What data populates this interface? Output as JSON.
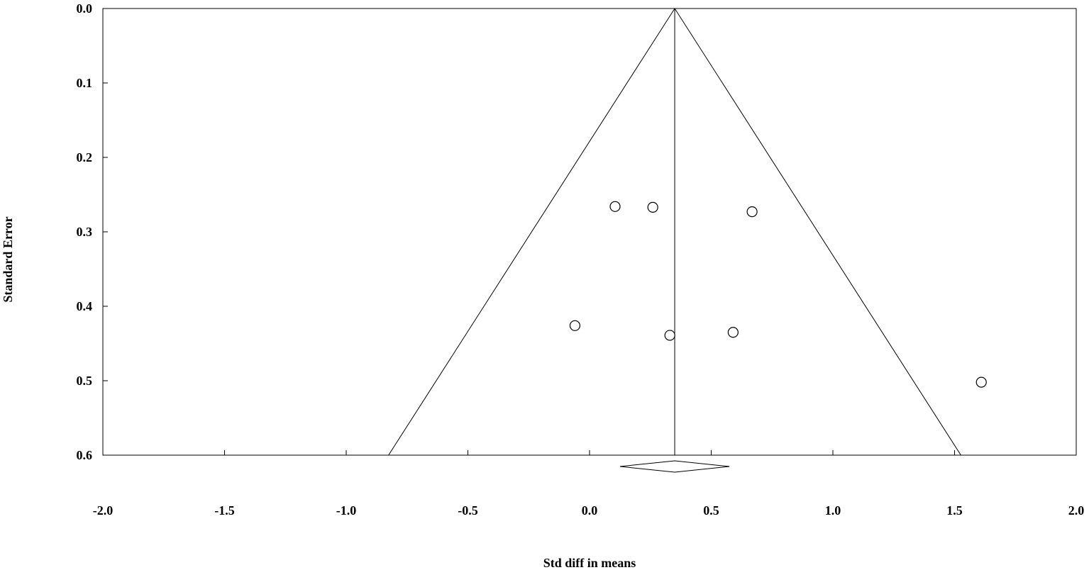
{
  "chart_data": {
    "type": "scatter",
    "title": "",
    "xlabel": "Std diff in means",
    "ylabel": "Standard Error",
    "xlim": [
      -2.0,
      2.0
    ],
    "ylim": [
      0.0,
      0.6
    ],
    "y_inverted": true,
    "grid": false,
    "x_ticks": [
      "-2.0",
      "-1.5",
      "-1.0",
      "-0.5",
      "0.0",
      "0.5",
      "1.0",
      "1.5",
      "2.0"
    ],
    "x_tick_values": [
      -2.0,
      -1.5,
      -1.0,
      -0.5,
      0.0,
      0.5,
      1.0,
      1.5,
      2.0
    ],
    "y_ticks": [
      "0.0",
      "0.1",
      "0.2",
      "0.3",
      "0.4",
      "0.5",
      "0.6"
    ],
    "y_tick_values": [
      0.0,
      0.1,
      0.2,
      0.3,
      0.4,
      0.5,
      0.6
    ],
    "pooled_estimate": 0.35,
    "pooled_ci": [
      0.125,
      0.575
    ],
    "funnel_limits_at_max_se": [
      -0.826,
      1.526
    ],
    "points": [
      {
        "x": 0.105,
        "y": 0.266
      },
      {
        "x": 0.26,
        "y": 0.267
      },
      {
        "x": 0.668,
        "y": 0.273
      },
      {
        "x": -0.06,
        "y": 0.426
      },
      {
        "x": 0.33,
        "y": 0.439
      },
      {
        "x": 0.59,
        "y": 0.435
      },
      {
        "x": 1.61,
        "y": 0.502
      }
    ],
    "colors": {
      "line": "#000000",
      "marker_fill": "#ffffff",
      "marker_stroke": "#000000"
    }
  }
}
